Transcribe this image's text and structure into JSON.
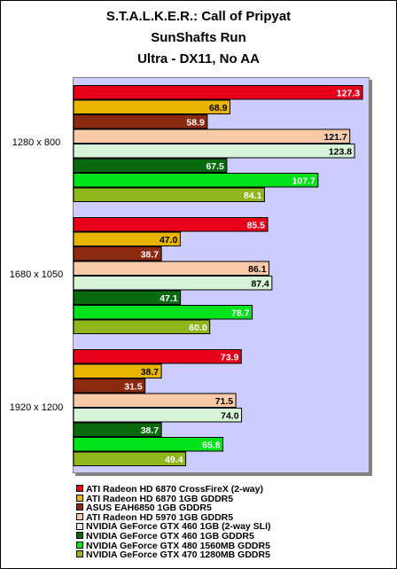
{
  "chart_data": {
    "type": "bar",
    "orientation": "horizontal",
    "title": [
      "S.T.A.L.K.E.R.: Call of Pripyat",
      "SunShafts Run",
      "Ultra - DX11, No AA"
    ],
    "categories": [
      "1280 x 800",
      "1680 x 1050",
      "1920 x 1200"
    ],
    "xlim": [
      0,
      130
    ],
    "grid": false,
    "legend_position": "bottom",
    "series": [
      {
        "name": "ATI Radeon HD 6870 CrossFireX (2-way)",
        "color": "#e8001b",
        "values": [
          127.3,
          85.5,
          73.9
        ]
      },
      {
        "name": "ATI Radeon HD 6870 1GB GDDR5",
        "color": "#e8b400",
        "values": [
          68.9,
          47.0,
          38.7
        ]
      },
      {
        "name": "ASUS EAH6850 1GB GDDR5",
        "color": "#8b2a10",
        "values": [
          58.9,
          38.7,
          31.5
        ]
      },
      {
        "name": "ATI Radeon HD 5970 1GB GDDR5",
        "color": "#f8caa8",
        "values": [
          121.7,
          86.1,
          71.5
        ]
      },
      {
        "name": "NVIDIA GeForce GTX 460 1GB (2-way SLI)",
        "color": "#d8f4d8",
        "values": [
          123.8,
          87.4,
          74.0
        ]
      },
      {
        "name": "NVIDIA GeForce GTX 460 1GB GDDR5",
        "color": "#0a6a10",
        "values": [
          67.5,
          47.1,
          38.7
        ]
      },
      {
        "name": "NVIDIA GeForce GTX 480 1560MB GDDR5",
        "color": "#00e31c",
        "values": [
          107.7,
          78.7,
          65.8
        ]
      },
      {
        "name": "NVIDIA GeForce GTX 470 1280MB GDDR5",
        "color": "#8fb61a",
        "values": [
          84.1,
          60.0,
          49.4
        ]
      }
    ],
    "value_labels": [
      [
        "127.3",
        "85.5",
        "73.9"
      ],
      [
        "68.9",
        "47.0",
        "38.7"
      ],
      [
        "58.9",
        "38.7",
        "31.5"
      ],
      [
        "121.7",
        "86.1",
        "71.5"
      ],
      [
        "123.8",
        "87.4",
        "74.0"
      ],
      [
        "67.5",
        "47.1",
        "38.7"
      ],
      [
        "107.7",
        "78.7",
        "65.8"
      ],
      [
        "84.1",
        "60.0",
        "49.4"
      ]
    ]
  }
}
